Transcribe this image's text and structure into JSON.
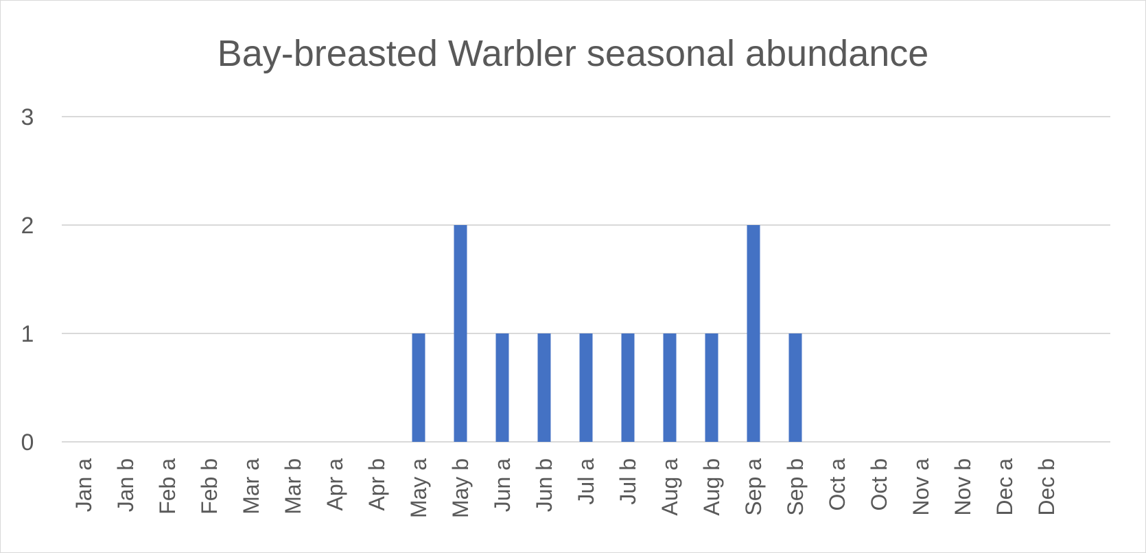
{
  "chart_data": {
    "type": "bar",
    "title": "Bay-breasted Warbler seasonal abundance",
    "xlabel": "",
    "ylabel": "",
    "ylim": [
      0,
      3
    ],
    "yticks": [
      "0",
      "1",
      "2",
      "3"
    ],
    "grid": true,
    "legend": "none",
    "bar_color": "#4472C4",
    "categories": [
      "Jan a",
      "Jan b",
      "Feb a",
      "Feb b",
      "Mar a",
      "Mar b",
      "Apr a",
      "Apr b",
      "May a",
      "May b",
      "Jun a",
      "Jun b",
      "Jul a",
      "Jul b",
      "Aug a",
      "Aug b",
      "Sep a",
      "Sep b",
      "Oct a",
      "Oct b",
      "Nov a",
      "Nov b",
      "Dec a",
      "Dec b"
    ],
    "values": [
      0,
      0,
      0,
      0,
      0,
      0,
      0,
      0,
      1,
      2,
      1,
      1,
      1,
      1,
      1,
      1,
      2,
      1,
      0,
      0,
      0,
      0,
      0,
      0
    ]
  }
}
